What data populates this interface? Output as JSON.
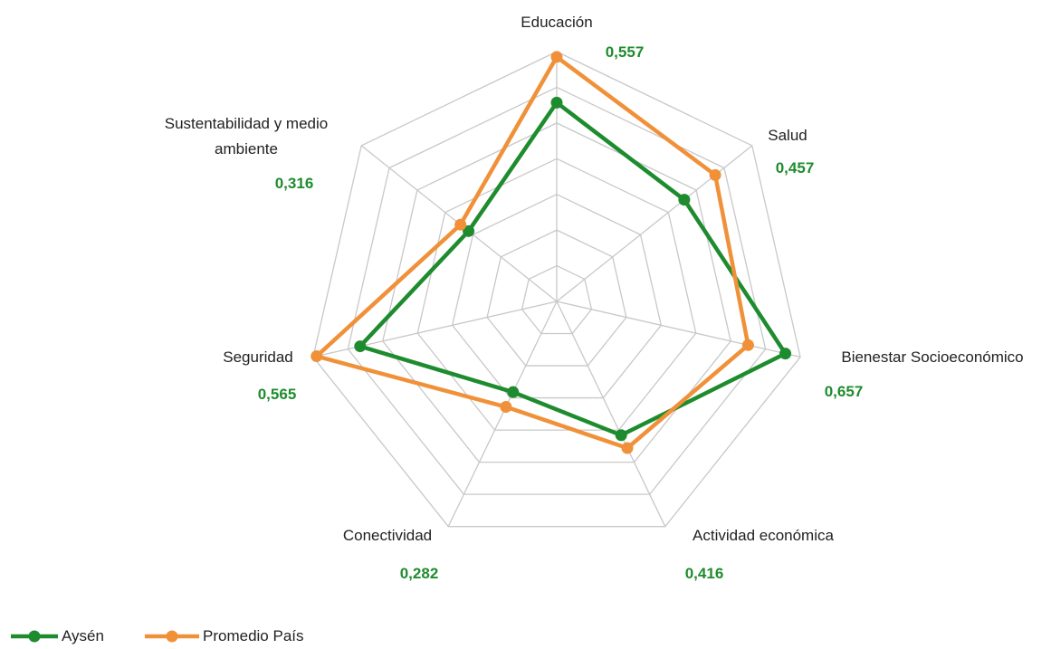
{
  "chart_data": {
    "type": "radar",
    "categories": [
      "Educación",
      "Salud",
      "Bienestar Socioeconómico",
      "Actividad económica",
      "Conectividad",
      "Seguridad",
      "Sustentabilidad y medio ambiente"
    ],
    "series": [
      {
        "name": "Aysén",
        "color": "#1e8c2e",
        "values": [
          0.557,
          0.457,
          0.657,
          0.416,
          0.282,
          0.565,
          0.316
        ],
        "value_labels": [
          "0,557",
          "0,457",
          "0,657",
          "0,416",
          "0,282",
          "0,565",
          "0,316"
        ]
      },
      {
        "name": "Promedio País",
        "color": "#f0913a",
        "values": [
          0.685,
          0.568,
          0.55,
          0.456,
          0.328,
          0.69,
          0.345
        ]
      }
    ],
    "rlim": [
      0,
      0.7
    ],
    "rticks": [
      0.1,
      0.2,
      0.3,
      0.4,
      0.5,
      0.6,
      0.7
    ],
    "grid": true,
    "legend": "bottom-left"
  }
}
